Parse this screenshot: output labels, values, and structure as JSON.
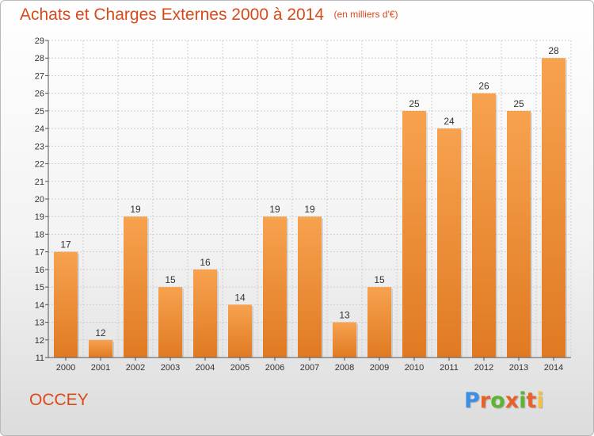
{
  "header": {
    "title": "Achats et Charges Externes 2000 à 2014",
    "subtitle": "(en milliers d'€)"
  },
  "footer": {
    "place": "OCCEY",
    "brand": "Proxiti",
    "brand_colors": [
      "#3a8ee6",
      "#e8612b",
      "#5bb531",
      "#e8612b",
      "#5bb531",
      "#e8612b",
      "#f2c33b"
    ]
  },
  "colors": {
    "accent": "#d94a1a",
    "bar_top": "#f7a24f",
    "bar_bottom": "#e07a22",
    "grid": "#cfcfcf",
    "axis": "#555555"
  },
  "chart_data": {
    "type": "bar",
    "categories": [
      "2000",
      "2001",
      "2002",
      "2003",
      "2004",
      "2005",
      "2006",
      "2007",
      "2008",
      "2009",
      "2010",
      "2011",
      "2012",
      "2013",
      "2014"
    ],
    "values": [
      17,
      12,
      19,
      15,
      16,
      14,
      19,
      19,
      13,
      15,
      25,
      24,
      26,
      25,
      28
    ],
    "ylim": [
      11,
      29
    ],
    "yticks": [
      11,
      12,
      13,
      14,
      15,
      16,
      17,
      18,
      19,
      20,
      21,
      22,
      23,
      24,
      25,
      26,
      27,
      28,
      29
    ],
    "grid": true,
    "legend": "none"
  }
}
